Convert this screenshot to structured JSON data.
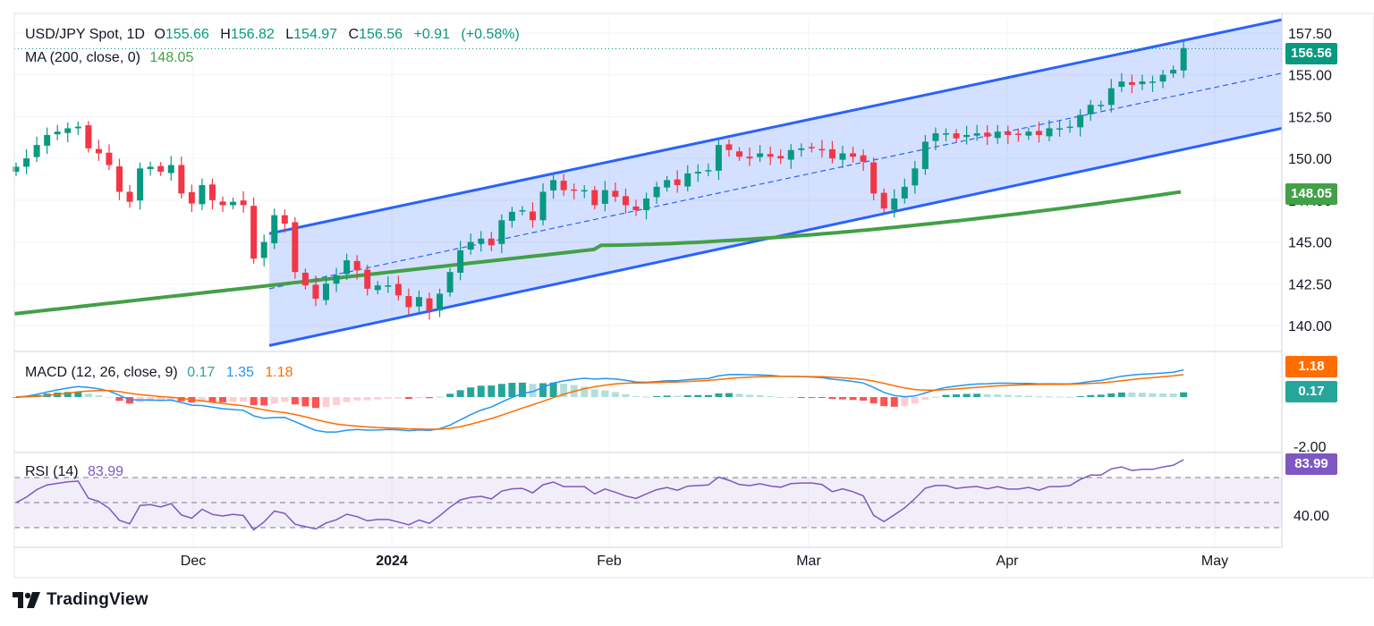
{
  "header": {
    "symbol": "USD/JPY Spot, 1D",
    "o_label": "O",
    "o_value": "155.66",
    "h_label": "H",
    "h_value": "156.82",
    "l_label": "L",
    "l_value": "154.97",
    "c_label": "C",
    "c_value": "156.56",
    "change": "+0.91",
    "change_pct": "(+0.58%)",
    "ma_label": "MA (200, close, 0)",
    "ma_value": "148.05"
  },
  "macd": {
    "label": "MACD (12, 26, close, 9)",
    "hist": "0.17",
    "macd": "1.35",
    "signal": "1.18"
  },
  "rsi": {
    "label": "RSI (14)",
    "value": "83.99"
  },
  "tags": {
    "price": "156.56",
    "ma": "148.05",
    "signal": "1.18",
    "hist": "0.17",
    "rsi": "83.99"
  },
  "brand": "TradingView",
  "colors": {
    "up": "#089981",
    "down": "#f23645",
    "ma": "#43a047",
    "channel": "#2962ff",
    "macd": "#2196f3",
    "signal": "#ff6d00",
    "rsi": "#7e57c2"
  },
  "chart_data": {
    "type": "candlestick",
    "title": "USD/JPY Spot, 1D",
    "price_axis": {
      "ticks": [
        "157.50",
        "155.00",
        "152.50",
        "150.00",
        "147.50",
        "145.00",
        "142.50",
        "140.00"
      ],
      "range": [
        138.5,
        158.3
      ]
    },
    "macd_axis": {
      "ticks": [
        "-2.00"
      ]
    },
    "rsi_axis": {
      "ticks": [
        "40.00"
      ],
      "levels": [
        70,
        50,
        30
      ]
    },
    "x_labels": [
      "Dec",
      "2024",
      "Feb",
      "Mar",
      "Apr",
      "May"
    ],
    "closes": [
      149.5,
      150.0,
      150.8,
      151.4,
      151.6,
      151.8,
      151.9,
      150.6,
      150.3,
      149.6,
      148.0,
      147.4,
      149.4,
      149.5,
      149.2,
      149.6,
      147.9,
      147.3,
      148.4,
      147.5,
      147.2,
      147.4,
      147.2,
      144.0,
      145.0,
      146.6,
      146.1,
      143.2,
      142.4,
      141.6,
      142.5,
      143.0,
      143.9,
      143.3,
      142.2,
      142.4,
      142.4,
      141.8,
      141.1,
      141.7,
      140.9,
      141.9,
      143.2,
      144.5,
      145.0,
      145.2,
      144.8,
      146.3,
      146.8,
      146.9,
      146.3,
      148.0,
      148.7,
      148.1,
      148.1,
      148.1,
      147.2,
      148.1,
      147.7,
      147.2,
      146.9,
      147.6,
      148.3,
      148.7,
      148.4,
      149.1,
      149.2,
      149.3,
      150.8,
      150.5,
      150.1,
      150.0,
      150.3,
      150.1,
      150.0,
      150.5,
      150.6,
      150.6,
      150.5,
      150.0,
      150.3,
      150.1,
      149.8,
      147.9,
      147.0,
      147.6,
      148.3,
      149.4,
      151.0,
      151.5,
      151.5,
      151.2,
      151.4,
      151.5,
      151.3,
      151.6,
      151.4,
      151.4,
      151.6,
      151.4,
      151.8,
      151.8,
      151.9,
      152.6,
      153.2,
      153.2,
      154.2,
      154.6,
      154.4,
      154.6,
      154.6,
      155.0,
      155.3,
      156.6
    ],
    "ma200": {
      "start": 140.7,
      "mid": 144.8,
      "end": 148.05
    },
    "channel": {
      "upper": [
        145.5,
        158.3
      ],
      "lower": [
        138.8,
        151.8
      ],
      "mid": [
        142.2,
        155.1
      ]
    },
    "macd_current": {
      "macd": 1.35,
      "signal": 1.18,
      "histogram": 0.17
    },
    "rsi_current": 83.99
  }
}
